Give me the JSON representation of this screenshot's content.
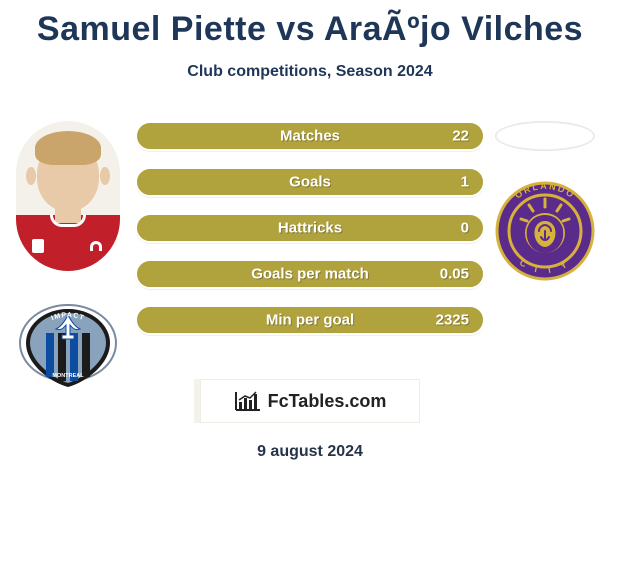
{
  "title": "Samuel Piette vs AraÃºjo Vilches",
  "subtitle": "Club competitions, Season 2024",
  "date": "9 august 2024",
  "brand": "FcTables.com",
  "colors": {
    "bar": "#b0a23d",
    "title": "#1e3658",
    "orlando_purple": "#5a2b8a",
    "orlando_gold": "#d7b23a",
    "impact_blue": "#0c4da2",
    "impact_black": "#1b1b1b",
    "jersey_red": "#c1202b"
  },
  "stats": [
    {
      "label": "Matches",
      "value": "22"
    },
    {
      "label": "Goals",
      "value": "1"
    },
    {
      "label": "Hattricks",
      "value": "0"
    },
    {
      "label": "Goals per match",
      "value": "0.05"
    },
    {
      "label": "Min per goal",
      "value": "2325"
    }
  ],
  "player_left": {
    "name": "Samuel Piette",
    "club": "Impact Montreal"
  },
  "player_right": {
    "name": "Araújo Vilches",
    "club": "Orlando City"
  }
}
